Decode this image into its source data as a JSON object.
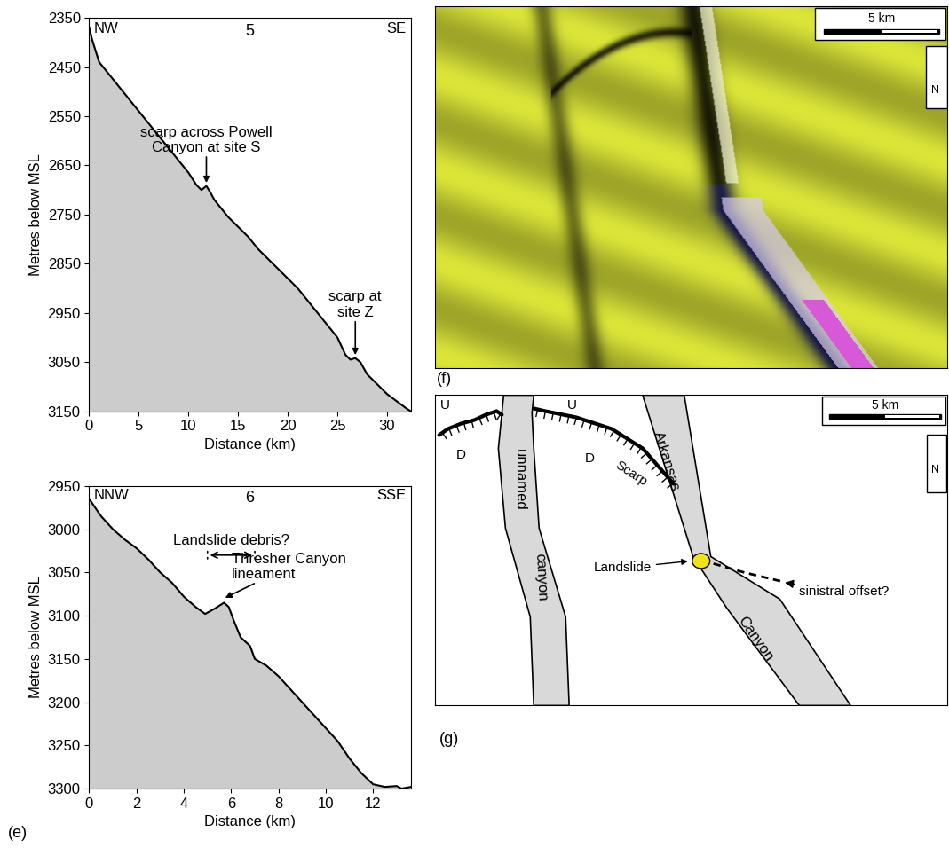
{
  "chart_data": [
    {
      "type": "line",
      "title": "5",
      "direction_labels": [
        "NW",
        "SE"
      ],
      "x_label": "Distance (km)",
      "y_label": "Metres below MSL",
      "color": "#cccccc",
      "x": [
        0,
        0.3,
        1,
        2,
        3,
        4,
        5,
        6,
        7,
        8,
        9,
        10,
        10.8,
        11.3,
        11.8,
        12.2,
        12.6,
        13,
        14,
        15,
        16,
        17,
        18,
        19,
        20,
        21,
        22,
        23,
        24,
        25,
        25.8,
        26.3,
        26.8,
        27.3,
        28,
        29,
        30,
        31,
        32,
        32.4
      ],
      "values": [
        2370,
        2395,
        2440,
        2465,
        2490,
        2515,
        2540,
        2565,
        2590,
        2615,
        2640,
        2665,
        2690,
        2700,
        2692,
        2705,
        2720,
        2730,
        2755,
        2775,
        2795,
        2820,
        2840,
        2860,
        2880,
        2900,
        2925,
        2950,
        2975,
        3000,
        3035,
        3045,
        3042,
        3050,
        3075,
        3095,
        3115,
        3130,
        3145,
        3150
      ],
      "xlim": [
        0,
        32.4
      ],
      "xticks": [
        0,
        5,
        10,
        15,
        20,
        25,
        30
      ],
      "ylim": [
        3150,
        2350
      ],
      "yticks": [
        2350,
        2450,
        2550,
        2650,
        2750,
        2850,
        2950,
        3050,
        3150
      ],
      "annotations": [
        {
          "text": "scarp across Powell\nCanyon at site S",
          "x": 11.8,
          "y": 2688
        },
        {
          "text": "scarp at\nsite Z",
          "x": 26.8,
          "y": 3038
        }
      ]
    },
    {
      "type": "line",
      "title": "6",
      "direction_labels": [
        "NNW",
        "SSE"
      ],
      "x_label": "Distance (km)",
      "y_label": "Metres below MSL",
      "color": "#cccccc",
      "x": [
        0,
        0.5,
        1,
        1.5,
        2,
        2.5,
        3,
        3.5,
        4,
        4.5,
        4.9,
        5.3,
        5.7,
        5.9,
        6.1,
        6.4,
        6.8,
        7,
        7.5,
        8,
        8.5,
        9,
        9.5,
        10,
        10.5,
        11,
        11.5,
        12,
        12.5,
        13,
        13.2,
        13.6
      ],
      "values": [
        2965,
        2985,
        3000,
        3012,
        3022,
        3035,
        3050,
        3062,
        3078,
        3090,
        3098,
        3092,
        3085,
        3090,
        3105,
        3125,
        3135,
        3150,
        3158,
        3170,
        3185,
        3200,
        3215,
        3230,
        3245,
        3265,
        3282,
        3295,
        3298,
        3297,
        3300,
        3298
      ],
      "xlim": [
        0,
        13.6
      ],
      "xticks": [
        0,
        2,
        4,
        6,
        8,
        10,
        12
      ],
      "ylim": [
        3300,
        2950
      ],
      "yticks": [
        2950,
        3000,
        3050,
        3100,
        3150,
        3200,
        3250,
        3300
      ],
      "annotations": [
        {
          "text": "Landslide debris?",
          "x_start": 5,
          "x_end": 7,
          "y": 3030
        },
        {
          "text": "Thresher Canyon\nlineament",
          "x": 5.7,
          "y": 3080
        }
      ]
    }
  ],
  "panel_e": {
    "label": "(e)"
  },
  "panel_f": {
    "label": "(f)",
    "scale_bar": "5 km",
    "north": "N"
  },
  "panel_g": {
    "label": "(g)",
    "upthrown": "U",
    "downthrown": "D",
    "scarp": "Scarp",
    "canyon_1": [
      "unnamed",
      "canyon"
    ],
    "canyon_2": [
      "Arkansas",
      "Canyon"
    ],
    "landslide": "Landslide",
    "offset": "sinistral offset?",
    "scale_bar": "5 km",
    "north": "N",
    "landslide_color": "#f2e21a"
  }
}
